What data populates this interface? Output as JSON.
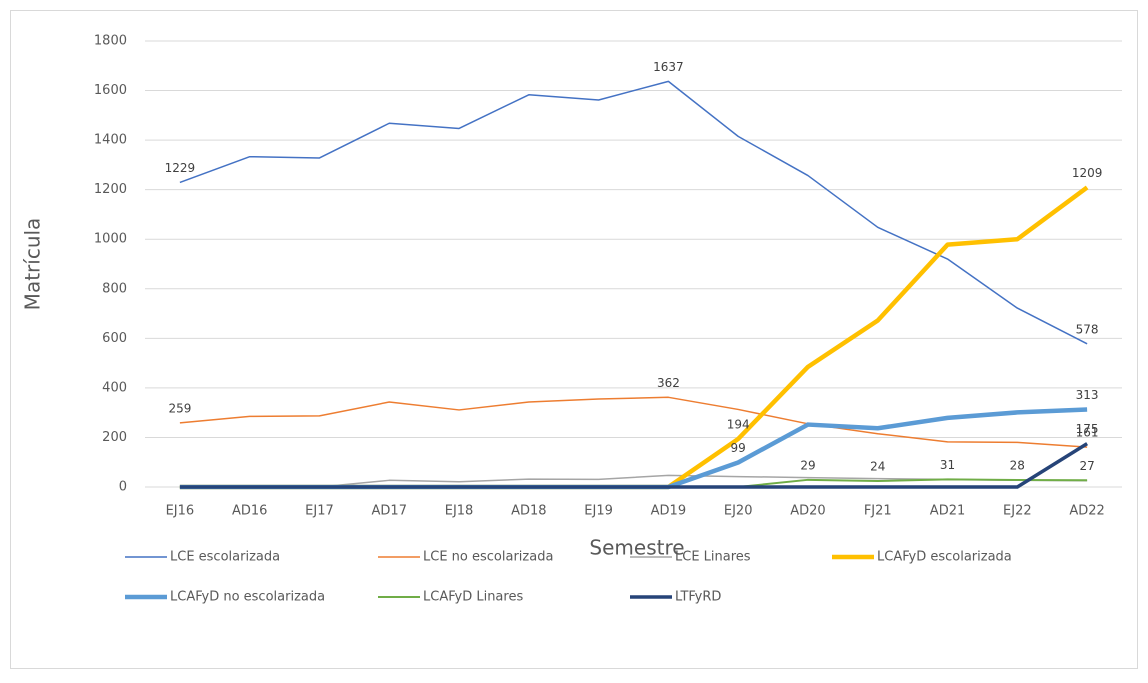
{
  "chart_data": {
    "type": "line",
    "x_label": "Semestre",
    "y_label": "Matrícula",
    "categories": [
      "EJ16",
      "AD16",
      "EJ17",
      "AD17",
      "EJ18",
      "AD18",
      "EJ19",
      "AD19",
      "EJ20",
      "AD20",
      "FJ21",
      "AD21",
      "EJ22",
      "AD22"
    ],
    "ylim": [
      0,
      1800
    ],
    "yticks": [
      0,
      200,
      400,
      600,
      800,
      1000,
      1200,
      1400,
      1600,
      1800
    ],
    "grid": true,
    "legend": "bottom",
    "series": [
      {
        "name": "LCE escolarizada",
        "color": "#4472c4",
        "width": 1.5,
        "values": [
          1229,
          1333,
          1328,
          1468,
          1447,
          1583,
          1562,
          1637,
          1415,
          1257,
          1048,
          920,
          722,
          578
        ],
        "labeled_points": [
          0,
          7,
          13
        ]
      },
      {
        "name": "LCE no escolarizada",
        "color": "#ed7d31",
        "width": 1.5,
        "values": [
          259,
          285,
          287,
          343,
          311,
          343,
          355,
          362,
          313,
          255,
          215,
          182,
          180,
          161
        ],
        "labeled_points": [
          0,
          7,
          13
        ]
      },
      {
        "name": "LCE Linares",
        "color": "#a5a5a5",
        "width": 1.5,
        "values": [
          0,
          0,
          0,
          27,
          21,
          32,
          31,
          47,
          42,
          38,
          34,
          31,
          27,
          25
        ],
        "labeled_points": []
      },
      {
        "name": "LCAFyD escolarizada",
        "color": "#ffc000",
        "width": 4.5,
        "values": [
          0,
          0,
          0,
          0,
          0,
          0,
          0,
          0,
          194,
          485,
          672,
          978,
          1000,
          1209
        ],
        "labeled_points": [
          8,
          13
        ]
      },
      {
        "name": "LCAFyD no escolarizada",
        "color": "#5b9bd5",
        "width": 4.5,
        "values": [
          0,
          0,
          0,
          0,
          0,
          0,
          0,
          0,
          99,
          252,
          237,
          279,
          301,
          313
        ],
        "labeled_points": [
          8,
          13
        ]
      },
      {
        "name": "LCAFyD Linares",
        "color": "#70ad47",
        "width": 2,
        "values": [
          0,
          0,
          0,
          0,
          0,
          0,
          0,
          0,
          0,
          29,
          24,
          31,
          28,
          27
        ],
        "labeled_points": [
          9,
          10,
          11,
          12,
          13
        ]
      },
      {
        "name": "LTFyRD",
        "color": "#264478",
        "width": 3.5,
        "values": [
          0,
          0,
          0,
          0,
          0,
          0,
          0,
          0,
          0,
          0,
          0,
          0,
          0,
          175
        ],
        "labeled_points": [
          13
        ]
      }
    ]
  }
}
